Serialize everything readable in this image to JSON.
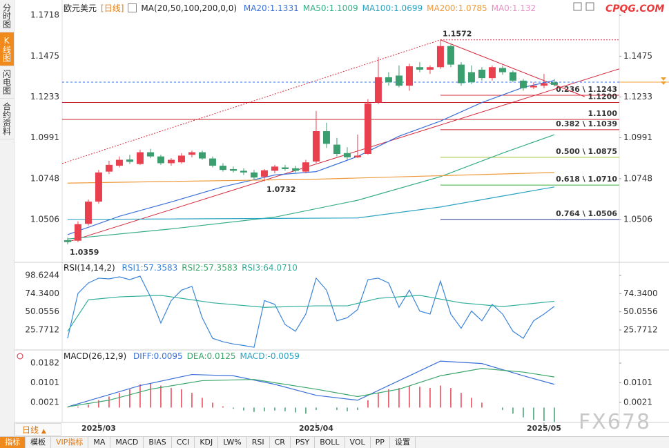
{
  "sidebar_tabs": [
    "分时图",
    "K线图",
    "闪电图",
    "合约资料"
  ],
  "active_tab": 1,
  "site_mark": "CPQG.COM",
  "watermark": "FX678",
  "toolbar": {
    "period": "日线",
    "items": [
      "指标",
      "模板",
      "VIP指标",
      "MA",
      "MACD",
      "BIAS",
      "CCI",
      "KDJ",
      "LW%",
      "RSI",
      "CR",
      "PSY",
      "BOLL",
      "VOL",
      "PP",
      "设置"
    ],
    "active": 0,
    "highlight": 2
  },
  "chart_data": [
    {
      "type": "candlestick",
      "title": "欧元美元",
      "period": "[日线]",
      "indicator": "MA(20,50,100,200,0,0)",
      "xlim": [
        -0.53,
        53.27
      ],
      "ylim": [
        1.026,
        1.1788
      ],
      "yticks": [
        1.1718,
        1.1475,
        1.1233,
        1.0991,
        1.0748,
        1.0506
      ],
      "up_color": "#e8404f",
      "down_color": "#3b9e6f",
      "open": [
        1.0383,
        1.038,
        1.048,
        1.0612,
        1.079,
        1.0825,
        1.0862,
        1.0835,
        1.0905,
        1.088,
        1.084,
        1.0845,
        1.089,
        1.0905,
        1.0868,
        1.0825,
        1.0805,
        1.0795,
        1.0785,
        1.076,
        1.0795,
        1.0815,
        1.081,
        1.079,
        1.085,
        1.103,
        1.095,
        1.09,
        1.0875,
        1.0895,
        1.12,
        1.135,
        1.136,
        1.13,
        1.141,
        1.1395,
        1.141,
        1.1535,
        1.1425,
        1.138,
        1.1395,
        1.1345,
        1.1405,
        1.138,
        1.133,
        1.129,
        1.13,
        1.132
      ],
      "high": [
        1.0398,
        1.0495,
        1.0625,
        1.08,
        1.0855,
        1.088,
        1.089,
        1.092,
        1.0925,
        1.089,
        1.087,
        1.09,
        1.0915,
        1.0915,
        1.088,
        1.084,
        1.082,
        1.081,
        1.08,
        1.0805,
        1.083,
        1.083,
        1.0825,
        1.086,
        1.115,
        1.108,
        1.099,
        1.0935,
        1.101,
        1.122,
        1.147,
        1.138,
        1.142,
        1.143,
        1.144,
        1.142,
        1.1572,
        1.1545,
        1.144,
        1.142,
        1.141,
        1.142,
        1.142,
        1.139,
        1.134,
        1.132,
        1.137,
        1.134
      ],
      "low": [
        1.0359,
        1.0372,
        1.047,
        1.06,
        1.0775,
        1.0815,
        1.0835,
        1.083,
        1.087,
        1.083,
        1.0825,
        1.0838,
        1.0875,
        1.086,
        1.0815,
        1.079,
        1.0785,
        1.077,
        1.0745,
        1.0732,
        1.078,
        1.0795,
        1.0785,
        1.078,
        1.084,
        1.093,
        1.088,
        1.086,
        1.087,
        1.089,
        1.119,
        1.13,
        1.129,
        1.127,
        1.138,
        1.137,
        1.14,
        1.141,
        1.13,
        1.131,
        1.133,
        1.133,
        1.1365,
        1.132,
        1.127,
        1.128,
        1.1285,
        1.1295
      ],
      "close": [
        1.0372,
        1.0478,
        1.0612,
        1.0785,
        1.083,
        1.086,
        1.0848,
        1.0905,
        1.088,
        1.084,
        1.086,
        1.0885,
        1.0905,
        1.0868,
        1.0825,
        1.08,
        1.0795,
        1.0785,
        1.0755,
        1.0798,
        1.082,
        1.0805,
        1.0795,
        1.0845,
        1.103,
        1.0955,
        1.0895,
        1.0875,
        1.0885,
        1.1195,
        1.135,
        1.132,
        1.13,
        1.1415,
        1.1395,
        1.141,
        1.1535,
        1.1425,
        1.1315,
        1.132,
        1.1345,
        1.141,
        1.138,
        1.133,
        1.1285,
        1.13,
        1.1315,
        1.1305
      ],
      "series": [
        {
          "name": "MA20:1.1331",
          "color": "#3a6fd8",
          "x": [
            0,
            5,
            10,
            15,
            20,
            24,
            28,
            32,
            36,
            40,
            44,
            47
          ],
          "values": [
            1.0416,
            1.0525,
            1.061,
            1.07,
            1.077,
            1.079,
            1.088,
            1.1,
            1.109,
            1.12,
            1.129,
            1.1331
          ]
        },
        {
          "name": "MA50:1.1009",
          "color": "#36ad86",
          "x": [
            0,
            10,
            20,
            28,
            36,
            42,
            47
          ],
          "values": [
            1.039,
            1.045,
            1.052,
            1.062,
            1.076,
            1.09,
            1.1009
          ]
        },
        {
          "name": "MA100:1.0699",
          "color": "#2aa3c2",
          "x": [
            0,
            28,
            36,
            42,
            47
          ],
          "values": [
            1.0506,
            1.0515,
            1.058,
            1.0645,
            1.0699
          ]
        },
        {
          "name": "MA200:1.0785",
          "color": "#ee9a3c",
          "x": [
            0,
            24,
            47
          ],
          "values": [
            1.0722,
            1.0745,
            1.0785
          ]
        },
        {
          "name": "MA0:1.132",
          "color": "#ea8fc4"
        }
      ],
      "levels": [
        {
          "value": 1.1243,
          "label": "0.236 \\ 1.1243",
          "color": "#d6283a",
          "start": 36
        },
        {
          "value": 1.12,
          "label": "1.1200",
          "color": "#c81e2e"
        },
        {
          "value": 1.11,
          "label": "1.1100",
          "color": "#c81e2e"
        },
        {
          "value": 1.1039,
          "label": "0.382 \\ 1.1039",
          "color": "#c81e2e",
          "start": 36
        },
        {
          "value": 1.0875,
          "label": "0.500 \\ 1.0875",
          "color": "#a3c43a",
          "start": 36
        },
        {
          "value": 1.071,
          "label": "0.618 \\ 1.0710",
          "color": "#3fae3f",
          "start": 36
        },
        {
          "value": 1.0506,
          "label": "0.764 \\ 1.0506",
          "color": "#1d2a8a",
          "start": 36
        }
      ],
      "trendlines": [
        {
          "x": [
            0,
            53.27
          ],
          "y": [
            1.0372,
            1.14
          ],
          "color": "#d6283a"
        },
        {
          "x": [
            -0.53,
            36
          ],
          "y": [
            1.0838,
            1.1572
          ],
          "color": "#d6283a",
          "dashed": true
        },
        {
          "x": [
            36,
            49.93
          ],
          "y": [
            1.1572,
            1.1235
          ],
          "color": "#d6283a"
        },
        {
          "x": [
            36,
            53.27
          ],
          "y": [
            1.1572,
            1.1572
          ],
          "color": "#d6283a",
          "dashed": true
        }
      ],
      "price_line": {
        "value": 1.1321,
        "color": "#3a6fd8",
        "marker_color": "#f0a030"
      },
      "annotations": [
        {
          "x": 36,
          "value": 1.1572,
          "color": "#d6283a"
        },
        {
          "x": 19,
          "value": 1.0732,
          "color": "#4a9e5c"
        },
        {
          "x": 0,
          "value": 1.0359,
          "color": "#4a9e5c"
        }
      ]
    },
    {
      "type": "line",
      "title": "RSI(14,14,2)",
      "ylim": [
        0.84,
        114.32
      ],
      "yticks": [
        98.6244,
        {
          "value": 74.34,
          "label": "74.3400"
        },
        50.0556,
        25.7712
      ],
      "series": [
        {
          "name": "RSI1:57.3583",
          "color": "#3a84d8",
          "values": [
            14.6,
            74.6,
            88.5,
            95,
            94,
            96.8,
            93,
            97.7,
            70,
            35,
            65,
            79,
            84,
            42,
            14.6,
            10,
            7,
            5,
            2.6,
            65,
            60,
            33,
            24,
            47,
            95,
            79,
            38,
            42,
            53,
            93,
            95,
            88.5,
            56,
            79,
            51,
            47,
            91,
            47,
            28,
            51,
            38,
            60,
            47,
            24,
            14.6,
            38,
            47,
            57.3583
          ]
        },
        {
          "name": "RSI2:57.3583",
          "color": "#3aa66a"
        },
        {
          "name": "RSI3:64.0710",
          "color": "#2fae9a",
          "x": [
            0,
            2,
            5,
            9,
            14,
            19,
            24,
            27,
            30,
            34,
            38,
            42,
            47
          ],
          "values": [
            24,
            66,
            70,
            72,
            62,
            56,
            58,
            58,
            68,
            72,
            62,
            57,
            64.071
          ]
        }
      ]
    },
    {
      "type": "macd",
      "title": "MACD(26,12,9)",
      "ylim": [
        -0.0061,
        0.0227
      ],
      "yticks": [
        0.0182,
        0.0101,
        0.0021
      ],
      "xticks": [
        {
          "value": 3,
          "label": "2025/03"
        },
        {
          "value": 24,
          "label": "2025/04"
        },
        {
          "value": 46,
          "label": "2025/05"
        }
      ],
      "series": [
        {
          "name": "DIFF:0.0095",
          "color": "#3a6fd8",
          "x": [
            0,
            3,
            7,
            12,
            16,
            20,
            24,
            28,
            32,
            36,
            40,
            44,
            47
          ],
          "values": [
            0.0003,
            0.004,
            0.009,
            0.0135,
            0.013,
            0.0095,
            0.005,
            0.003,
            0.011,
            0.019,
            0.018,
            0.013,
            0.0095
          ]
        },
        {
          "name": "DEA:0.0125",
          "color": "#3aa66a",
          "x": [
            0,
            4,
            8,
            13,
            18,
            24,
            28,
            32,
            36,
            40,
            44,
            47
          ],
          "values": [
            0.0003,
            0.003,
            0.0075,
            0.011,
            0.0115,
            0.0075,
            0.0045,
            0.0075,
            0.013,
            0.016,
            0.0145,
            0.0125
          ]
        }
      ],
      "histogram_name": "MACD:-0.0059",
      "histogram_color": "#2aa3c2",
      "up_color": "#e8404f",
      "down_color": "#3b9e6f",
      "histogram": [
        0.0001,
        0.0004,
        0.0012,
        0.003,
        0.0045,
        0.006,
        0.0075,
        0.0095,
        0.01,
        0.009,
        0.008,
        0.0075,
        0.006,
        0.004,
        0.002,
        0.0005,
        -0.0005,
        -0.0012,
        -0.0018,
        -0.0015,
        -0.0012,
        -0.0015,
        -0.002,
        -0.0025,
        -0.001,
        0,
        -0.001,
        -0.0015,
        -0.001,
        0.003,
        0.006,
        0.0075,
        0.008,
        0.009,
        0.0085,
        0.008,
        0.009,
        0.008,
        0.006,
        0.004,
        0.002,
        0,
        -0.001,
        -0.0025,
        -0.004,
        -0.005,
        -0.0055,
        -0.0059
      ]
    }
  ]
}
